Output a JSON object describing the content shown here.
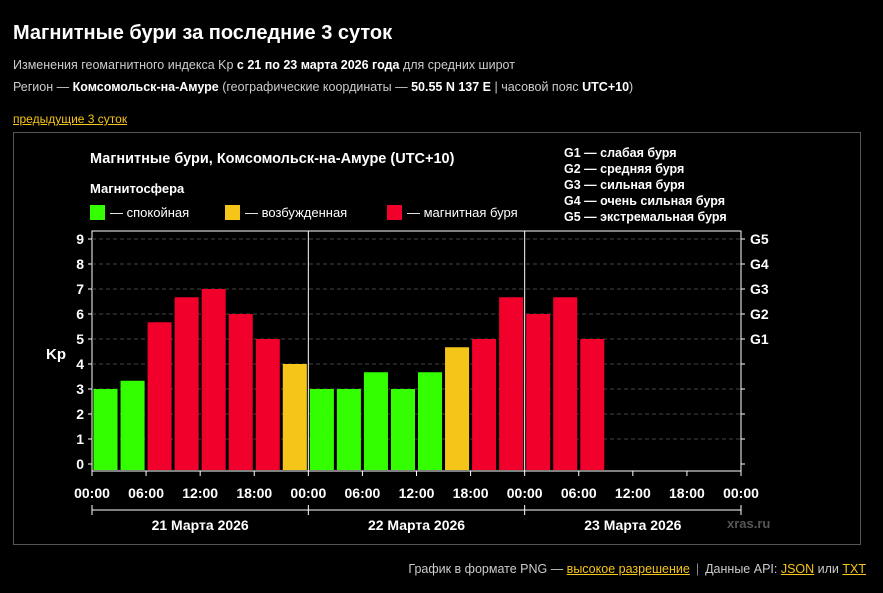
{
  "header": {
    "title": "Магнитные бури за последние 3 суток",
    "sub1_pre": "Изменения геомагнитного индекса Kp ",
    "sub1_bold": "с 21 по 23 марта 2026 года",
    "sub1_post": " для средних широт",
    "sub2_pre": "Регион — ",
    "sub2_region": "Комсомольск-на-Амуре",
    "sub2_mid": " (географические координаты — ",
    "sub2_coords": "50.55 N 137 E",
    "sub2_mid2": " | часовой пояс ",
    "sub2_tz": "UTC+10",
    "sub2_post": ")",
    "prev_link": "предыдущие 3 суток"
  },
  "chart_data": {
    "type": "bar",
    "title": "Магнитные бури, Комсомольск-на-Амуре (UTC+10)",
    "legend_title": "Магнитосфера",
    "legend": [
      {
        "label": "— спокойная",
        "color": "#33ff00"
      },
      {
        "label": "— возбужденная",
        "color": "#f5c518"
      },
      {
        "label": "— магнитная буря",
        "color": "#f0002a"
      }
    ],
    "storm_scale": [
      "G1 — слабая буря",
      "G2 — средняя буря",
      "G3 — сильная буря",
      "G4 — очень сильная буря",
      "G5 — экстремальная буря"
    ],
    "ylabel": "Kp",
    "ylim": [
      0,
      9
    ],
    "yticks": [
      "0",
      "1",
      "2",
      "3",
      "4",
      "5",
      "6",
      "7",
      "8",
      "9"
    ],
    "g_ticks": [
      {
        "label": "G1",
        "kp": 5
      },
      {
        "label": "G2",
        "kp": 6
      },
      {
        "label": "G3",
        "kp": 7
      },
      {
        "label": "G4",
        "kp": 8
      },
      {
        "label": "G5",
        "kp": 9
      }
    ],
    "x_tick_labels": [
      "00:00",
      "06:00",
      "12:00",
      "18:00",
      "00:00",
      "06:00",
      "12:00",
      "18:00",
      "00:00",
      "06:00",
      "12:00",
      "18:00",
      "00:00"
    ],
    "days": [
      "21 Марта 2026",
      "22 Марта 2026",
      "23 Марта 2026"
    ],
    "series": [
      {
        "x": [
          "00:00",
          "03:00",
          "06:00",
          "09:00",
          "12:00",
          "15:00",
          "18:00",
          "21:00",
          "00:00",
          "03:00",
          "06:00",
          "09:00",
          "12:00",
          "15:00",
          "18:00",
          "21:00",
          "00:00",
          "03:00",
          "06:00"
        ],
        "values": [
          3.0,
          3.33,
          5.67,
          6.67,
          7.0,
          6.0,
          5.0,
          4.0,
          3.0,
          3.0,
          3.67,
          3.0,
          3.67,
          4.67,
          5.0,
          6.67,
          6.0,
          6.67,
          5.0
        ]
      }
    ],
    "colors": {
      "quiet": "#33ff00",
      "active": "#f5c518",
      "storm": "#f0002a"
    },
    "watermark": "xras.ru",
    "grid": true
  },
  "footer": {
    "png_text": "График в формате PNG — ",
    "png_link": "высокое разрешение",
    "api_text": "Данные API: ",
    "json_link": "JSON",
    "or_text": " или ",
    "txt_link": "TXT"
  }
}
